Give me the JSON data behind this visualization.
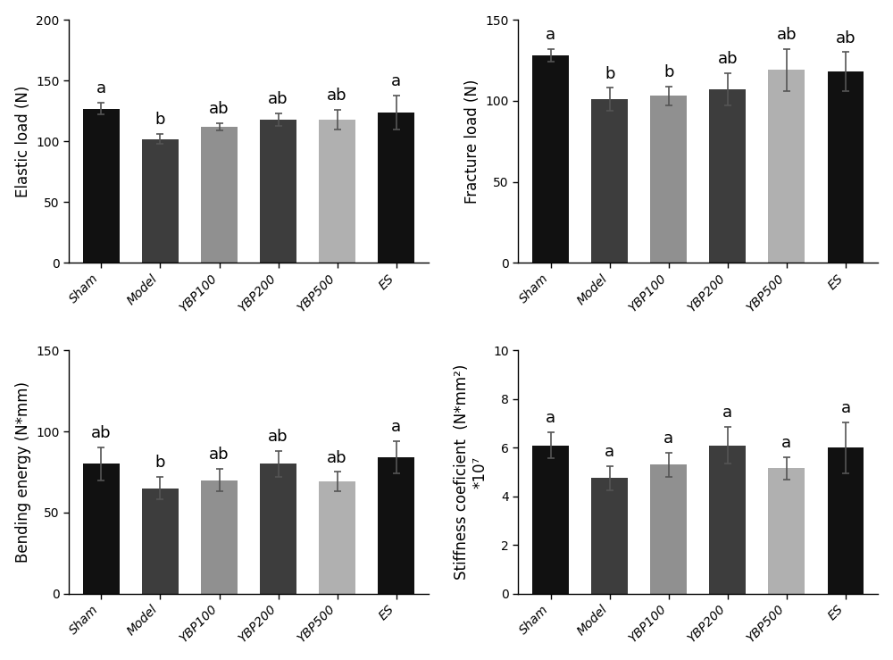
{
  "categories": [
    "Sham",
    "Model",
    "YBP100",
    "YBP200",
    "YBP500",
    "ES"
  ],
  "bar_colors": [
    "#111111",
    "#3d3d3d",
    "#909090",
    "#3d3d3d",
    "#b0b0b0",
    "#111111"
  ],
  "plots": [
    {
      "ylabel": "Elastic load (N)",
      "ylim": [
        0,
        200
      ],
      "yticks": [
        0,
        50,
        100,
        150,
        200
      ],
      "values": [
        127,
        102,
        112,
        118,
        118,
        124
      ],
      "errors": [
        5,
        4,
        3,
        5,
        8,
        14
      ],
      "labels": [
        "a",
        "b",
        "ab",
        "ab",
        "ab",
        "a"
      ]
    },
    {
      "ylabel": "Fracture load (N)",
      "ylim": [
        0,
        150
      ],
      "yticks": [
        0,
        50,
        100,
        150
      ],
      "values": [
        128,
        101,
        103,
        107,
        119,
        118
      ],
      "errors": [
        4,
        7,
        6,
        10,
        13,
        12
      ],
      "labels": [
        "a",
        "b",
        "b",
        "ab",
        "ab",
        "ab"
      ]
    },
    {
      "ylabel": "Bending energy (N*mm)",
      "ylim": [
        0,
        150
      ],
      "yticks": [
        0,
        50,
        100,
        150
      ],
      "values": [
        80,
        65,
        70,
        80,
        69,
        84
      ],
      "errors": [
        10,
        7,
        7,
        8,
        6,
        10
      ],
      "labels": [
        "ab",
        "b",
        "ab",
        "ab",
        "ab",
        "a"
      ]
    },
    {
      "ylabel": "Stiffness coeficient  (N*mm²)\n*10⁷",
      "ylim": [
        0,
        10
      ],
      "yticks": [
        0,
        2,
        4,
        6,
        8,
        10
      ],
      "values": [
        6.1,
        4.75,
        5.3,
        6.1,
        5.15,
        6.0
      ],
      "errors": [
        0.55,
        0.5,
        0.5,
        0.75,
        0.45,
        1.05
      ],
      "labels": [
        "a",
        "a",
        "a",
        "a",
        "a",
        "a"
      ]
    }
  ],
  "label_fontsize": 12,
  "tick_fontsize": 10,
  "annot_fontsize": 13,
  "bar_width": 0.62,
  "capsize": 3,
  "error_lw": 1.2,
  "error_color": "#555555",
  "background_color": "#ffffff"
}
